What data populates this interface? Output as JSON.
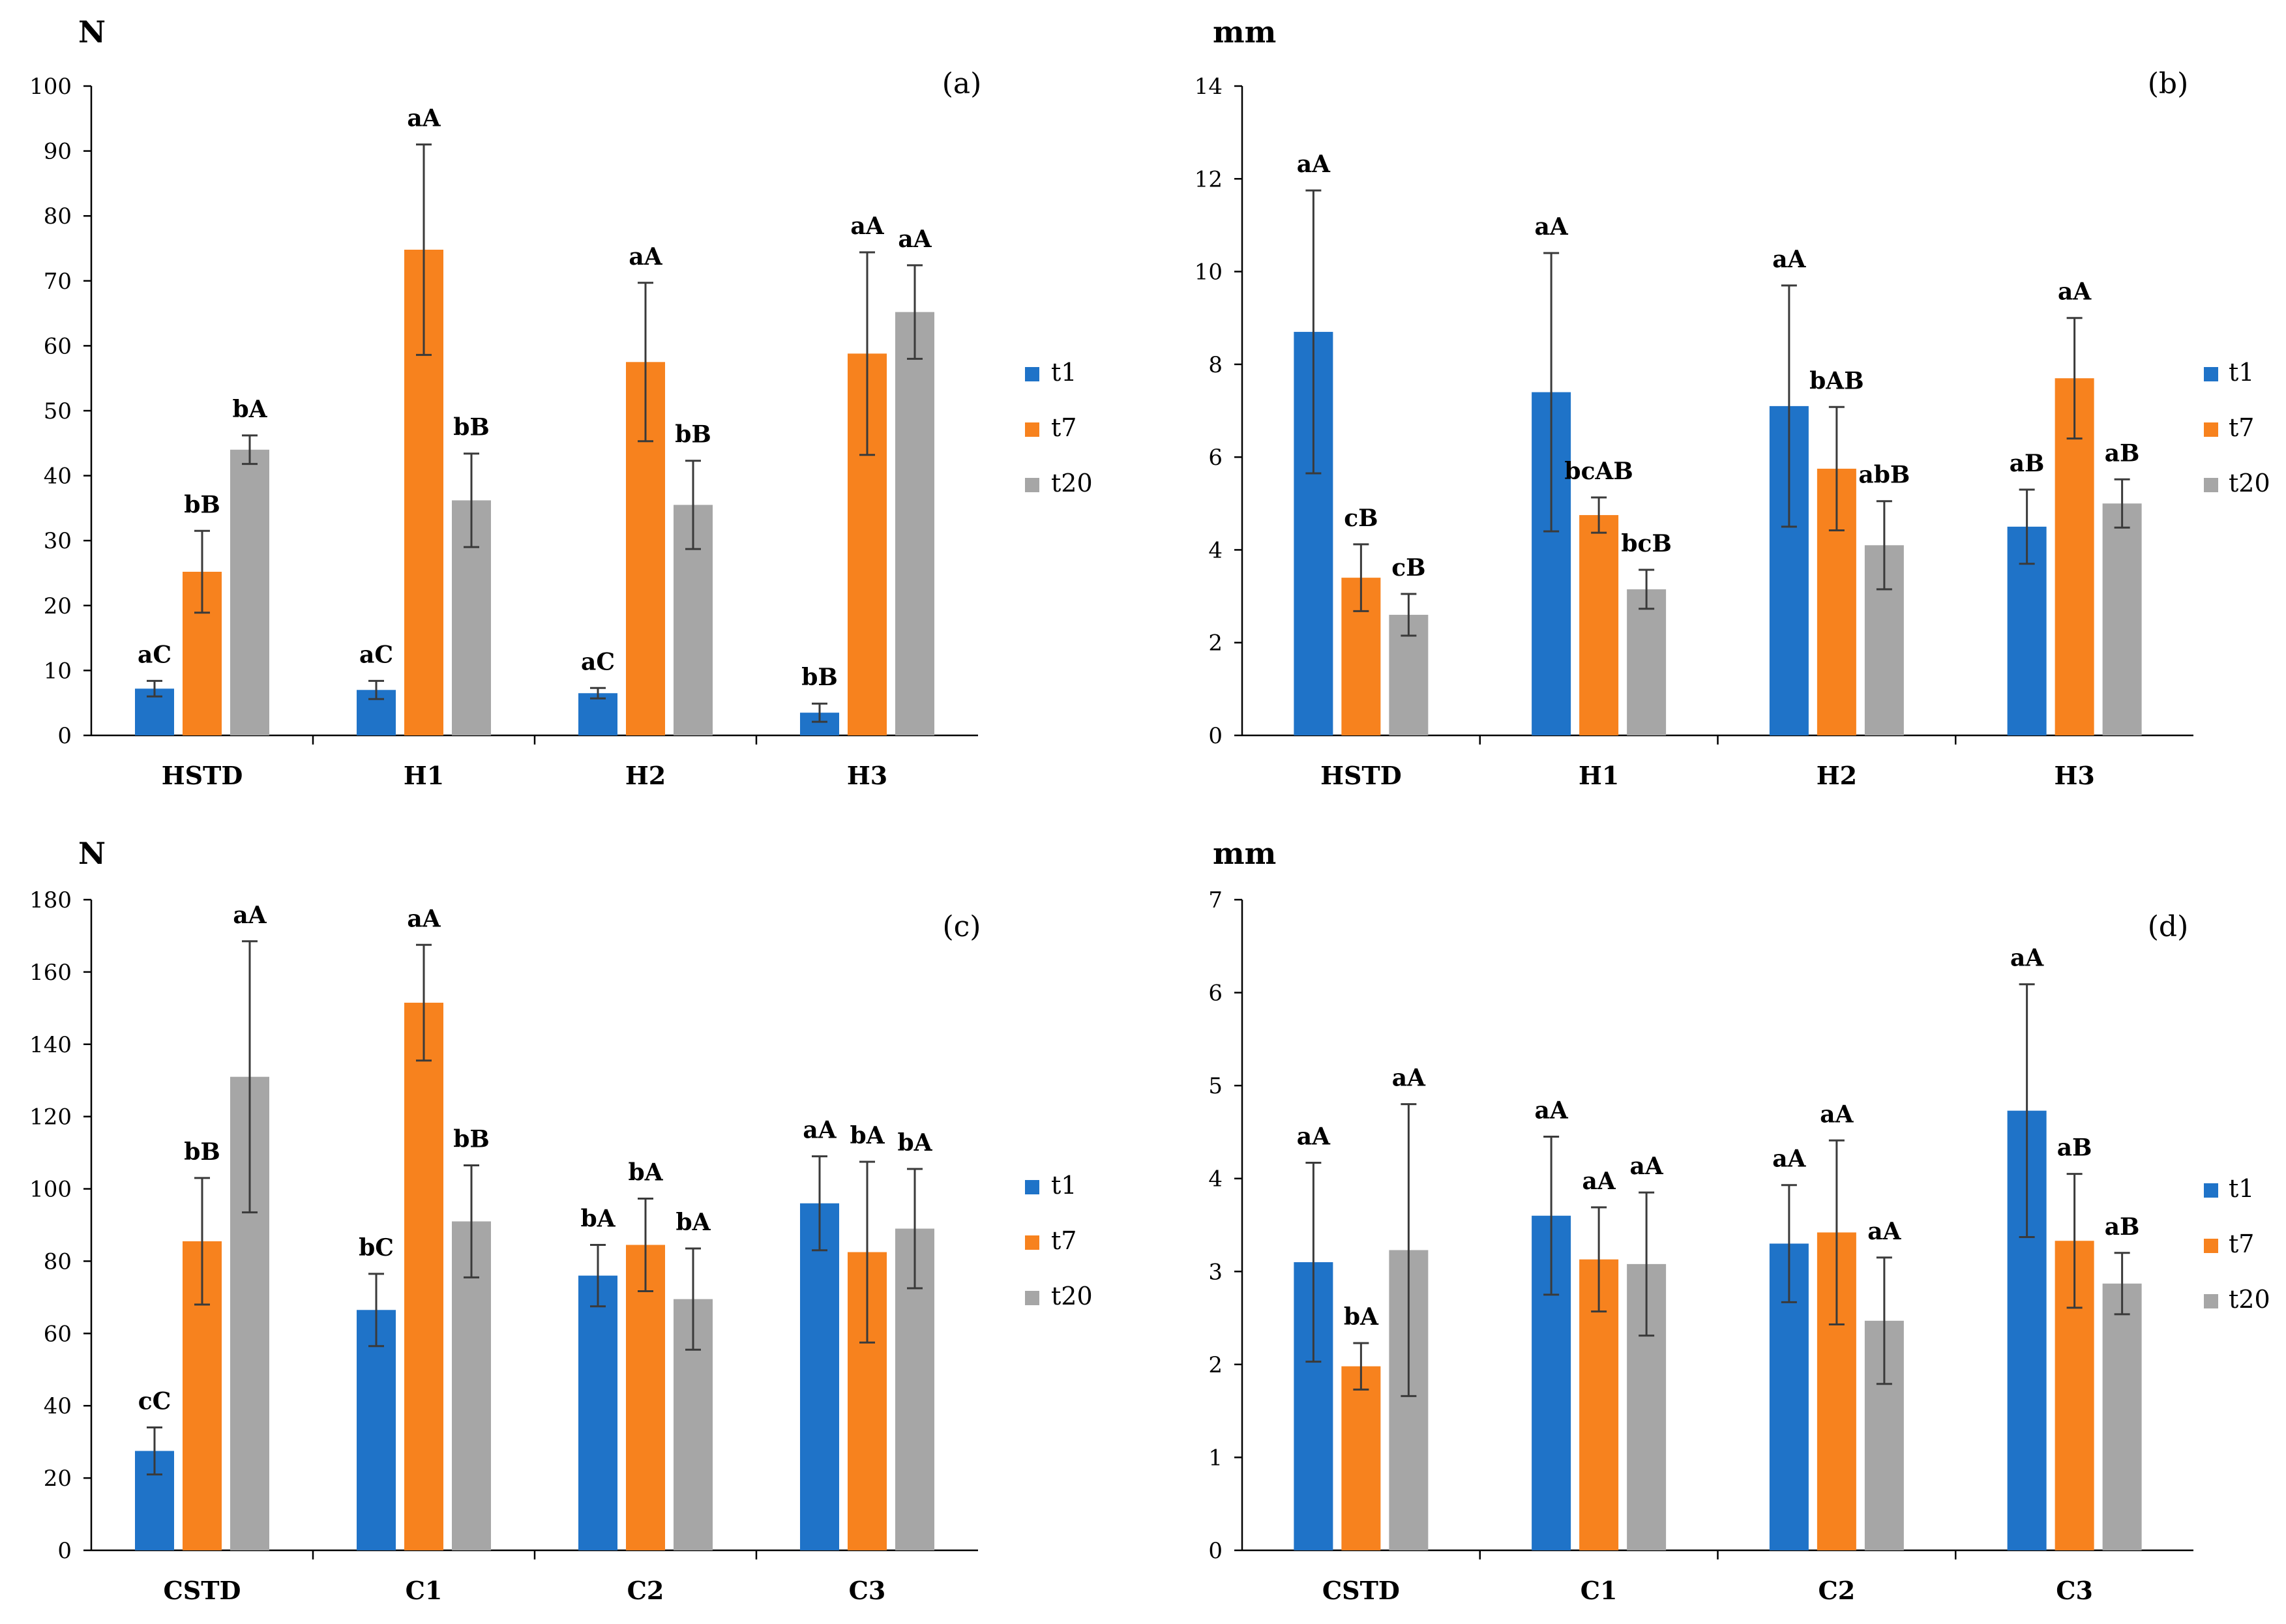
{
  "colors": {
    "t1": "#1f73c8",
    "t7": "#f7821e",
    "t20": "#a6a6a6",
    "axis": "#000000",
    "error": "#3a3a3a"
  },
  "chart_data": [
    {
      "id": "a",
      "type": "bar",
      "panel_label": "(a)",
      "unit": "N",
      "ylim": [
        0,
        100
      ],
      "yticks": [
        0,
        10,
        20,
        30,
        40,
        50,
        60,
        70,
        80,
        90,
        100
      ],
      "categories": [
        "HSTD",
        "H1",
        "H2",
        "H3"
      ],
      "legend_position": "right",
      "series": [
        {
          "name": "t1",
          "color_key": "t1",
          "values": [
            7.2,
            7.0,
            6.5,
            3.5
          ],
          "errors": [
            1.2,
            1.4,
            0.8,
            1.4
          ],
          "labels": [
            "aC",
            "aC",
            "aC",
            "bB"
          ]
        },
        {
          "name": "t7",
          "color_key": "t7",
          "values": [
            25.2,
            74.8,
            57.5,
            58.8
          ],
          "errors": [
            6.3,
            16.2,
            12.2,
            15.6
          ],
          "labels": [
            "bB",
            "aA",
            "aA",
            "aA"
          ]
        },
        {
          "name": "t20",
          "color_key": "t20",
          "values": [
            44.0,
            36.2,
            35.5,
            65.2
          ],
          "errors": [
            2.2,
            7.2,
            6.8,
            7.2
          ],
          "labels": [
            "bA",
            "bB",
            "bB",
            "aA"
          ]
        }
      ]
    },
    {
      "id": "b",
      "type": "bar",
      "panel_label": "(b)",
      "unit": "mm",
      "ylim": [
        0,
        14
      ],
      "yticks": [
        0,
        2,
        4,
        6,
        8,
        10,
        12,
        14
      ],
      "categories": [
        "HSTD",
        "H1",
        "H2",
        "H3"
      ],
      "legend_position": "right",
      "series": [
        {
          "name": "t1",
          "color_key": "t1",
          "values": [
            8.7,
            7.4,
            7.1,
            4.5
          ],
          "errors": [
            3.05,
            3.0,
            2.6,
            0.8
          ],
          "labels": [
            "aA",
            "aA",
            "aA",
            "aB"
          ]
        },
        {
          "name": "t7",
          "color_key": "t7",
          "values": [
            3.4,
            4.75,
            5.75,
            7.7
          ],
          "errors": [
            0.72,
            0.38,
            1.33,
            1.3
          ],
          "labels": [
            "cB",
            "bcAB",
            "bAB",
            "aA"
          ]
        },
        {
          "name": "t20",
          "color_key": "t20",
          "values": [
            2.6,
            3.15,
            4.1,
            5.0
          ],
          "errors": [
            0.45,
            0.42,
            0.95,
            0.52
          ],
          "labels": [
            "cB",
            "bcB",
            "abB",
            "aB"
          ]
        }
      ]
    },
    {
      "id": "c",
      "type": "bar",
      "panel_label": "(c)",
      "unit": "N",
      "ylim": [
        0,
        180
      ],
      "yticks": [
        0,
        20,
        40,
        60,
        80,
        100,
        120,
        140,
        160,
        180
      ],
      "categories": [
        "CSTD",
        "C1",
        "C2",
        "C3"
      ],
      "legend_position": "right",
      "series": [
        {
          "name": "t1",
          "color_key": "t1",
          "values": [
            27.5,
            66.5,
            76.0,
            96.0
          ],
          "errors": [
            6.5,
            10.0,
            8.5,
            13.0
          ],
          "labels": [
            "cC",
            "bC",
            "bA",
            "aA"
          ]
        },
        {
          "name": "t7",
          "color_key": "t7",
          "values": [
            85.5,
            151.5,
            84.5,
            82.5
          ],
          "errors": [
            17.5,
            16.0,
            12.8,
            25.0
          ],
          "labels": [
            "bB",
            "aA",
            "bA",
            "bA"
          ]
        },
        {
          "name": "t20",
          "color_key": "t20",
          "values": [
            131.0,
            91.0,
            69.5,
            89.0
          ],
          "errors": [
            37.5,
            15.5,
            14.0,
            16.5
          ],
          "labels": [
            "aA",
            "bB",
            "bA",
            "bA"
          ]
        }
      ]
    },
    {
      "id": "d",
      "type": "bar",
      "panel_label": "(d)",
      "unit": "mm",
      "ylim": [
        0,
        7
      ],
      "yticks": [
        0,
        1,
        2,
        3,
        4,
        5,
        6,
        7
      ],
      "categories": [
        "CSTD",
        "C1",
        "C2",
        "C3"
      ],
      "legend_position": "right",
      "series": [
        {
          "name": "t1",
          "color_key": "t1",
          "values": [
            3.1,
            3.6,
            3.3,
            4.73
          ],
          "errors": [
            1.07,
            0.85,
            0.63,
            1.36
          ],
          "labels": [
            "aA",
            "aA",
            "aA",
            "aA"
          ]
        },
        {
          "name": "t7",
          "color_key": "t7",
          "values": [
            1.98,
            3.13,
            3.42,
            3.33
          ],
          "errors": [
            0.25,
            0.56,
            0.99,
            0.72
          ],
          "labels": [
            "bA",
            "aA",
            "aA",
            "aB"
          ]
        },
        {
          "name": "t20",
          "color_key": "t20",
          "values": [
            3.23,
            3.08,
            2.47,
            2.87
          ],
          "errors": [
            1.57,
            0.77,
            0.68,
            0.33
          ],
          "labels": [
            "aA",
            "aA",
            "aA",
            "aB"
          ]
        }
      ]
    }
  ]
}
